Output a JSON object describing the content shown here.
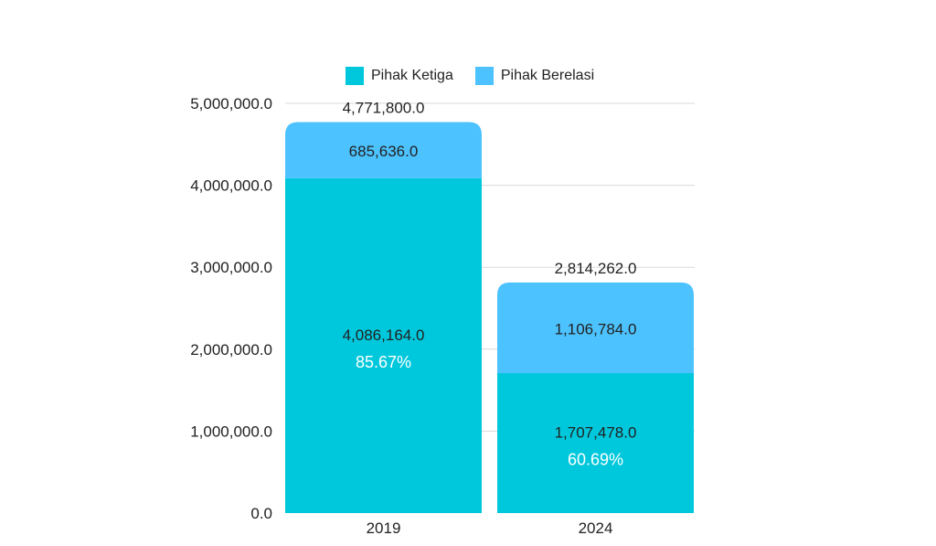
{
  "chart_data": {
    "type": "bar",
    "stacked": true,
    "categories": [
      "2019",
      "2024"
    ],
    "series": [
      {
        "name": "Pihak Ketiga",
        "values": [
          4086164.0,
          1707478.0
        ],
        "labels": [
          "4,086,164.0",
          "1,707,478.0"
        ],
        "percent_labels": [
          "85.67%",
          "60.69%"
        ],
        "color": "#00C8DC"
      },
      {
        "name": "Pihak Berelasi",
        "values": [
          685636.0,
          1106784.0
        ],
        "labels": [
          "685,636.0",
          "1,106,784.0"
        ],
        "color": "#4CC2FF"
      }
    ],
    "totals": [
      4771800.0,
      2814262.0
    ],
    "total_labels": [
      "4,771,800.0",
      "2,814,262.0"
    ],
    "yticks": [
      0,
      1000000,
      2000000,
      3000000,
      4000000,
      5000000
    ],
    "ytick_labels": [
      "0.0",
      "1,000,000.0",
      "2,000,000.0",
      "3,000,000.0",
      "4,000,000.0",
      "5,000,000.0"
    ],
    "ylim": [
      0,
      5000000
    ],
    "grid": true,
    "legend_position": "top",
    "title": "",
    "xlabel": "",
    "ylabel": ""
  }
}
